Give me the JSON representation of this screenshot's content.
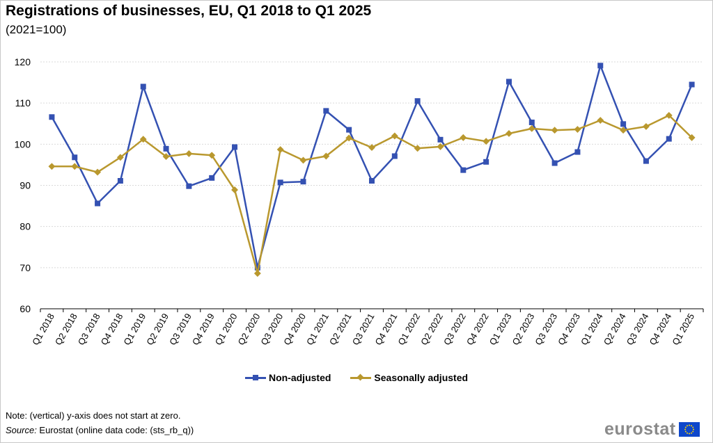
{
  "title": "Registrations of businesses, EU, Q1 2018 to Q1 2025",
  "subtitle": "(2021=100)",
  "note": "Note: (vertical) y-axis does not start at zero.",
  "source_label": "Source:",
  "source_text": " Eurostat (online data code: (sts_rb_q))",
  "logo_text": "eurostat",
  "chart_data": {
    "type": "line",
    "title": "Registrations of businesses, EU, Q1 2018 to Q1 2025",
    "subtitle": "(2021=100)",
    "xlabel": "",
    "ylabel": "",
    "ylim": [
      60,
      120
    ],
    "yticks": [
      60,
      70,
      80,
      90,
      100,
      110,
      120
    ],
    "grid": true,
    "legend_position": "bottom",
    "categories": [
      "Q1 2018",
      "Q2 2018",
      "Q3 2018",
      "Q4 2018",
      "Q1 2019",
      "Q2 2019",
      "Q3 2019",
      "Q4 2019",
      "Q1 2020",
      "Q2 2020",
      "Q3 2020",
      "Q4 2020",
      "Q1 2021",
      "Q2 2021",
      "Q3 2021",
      "Q4 2021",
      "Q1 2022",
      "Q2 2022",
      "Q3 2022",
      "Q4 2022",
      "Q1 2023",
      "Q2 2023",
      "Q3 2023",
      "Q4 2023",
      "Q1 2024",
      "Q2 2024",
      "Q3 2024",
      "Q4 2024",
      "Q1 2025"
    ],
    "series": [
      {
        "name": "Non-adjusted",
        "color": "#3451b2",
        "marker": "square",
        "values": [
          106.6,
          96.8,
          85.6,
          91.1,
          114.0,
          98.9,
          89.8,
          91.8,
          99.3,
          70.0,
          90.7,
          90.9,
          108.1,
          103.5,
          91.1,
          97.1,
          110.5,
          101.1,
          93.7,
          95.7,
          115.2,
          105.3,
          95.4,
          98.1,
          119.1,
          104.9,
          95.9,
          101.3,
          114.5
        ]
      },
      {
        "name": "Seasonally adjusted",
        "color": "#b9982e",
        "marker": "diamond",
        "values": [
          94.6,
          94.6,
          93.2,
          96.8,
          101.2,
          97.0,
          97.7,
          97.3,
          88.9,
          68.6,
          98.7,
          96.1,
          97.1,
          101.5,
          99.2,
          102.0,
          99.0,
          99.4,
          101.6,
          100.7,
          102.6,
          103.8,
          103.4,
          103.6,
          105.8,
          103.4,
          104.3,
          107.0,
          101.6
        ]
      }
    ]
  }
}
